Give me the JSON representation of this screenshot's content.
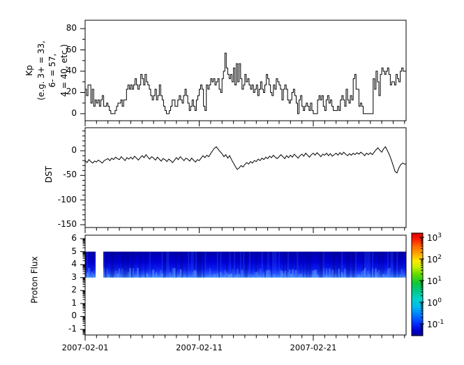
{
  "figure": {
    "background": "#ffffff",
    "frame_color": "#000000",
    "line_color": "#000000"
  },
  "xaxis": {
    "tick_labels": [
      "2007-02-01",
      "2007-02-11",
      "2007-02-21"
    ],
    "tick_days": [
      0,
      10,
      20
    ],
    "minor_every_days": 1,
    "total_days": 28.13
  },
  "panels": {
    "kp": {
      "label_lines": [
        "Kp",
        "(e.g. 3+ = 33,",
        "6- = 57,",
        "4 = 40, etc.)"
      ],
      "yticks": [
        0,
        20,
        40,
        60,
        80
      ],
      "yminor": [
        10,
        30,
        50,
        70
      ]
    },
    "dst": {
      "label": "DST",
      "yticks": [
        0,
        -50,
        -100,
        -150
      ]
    },
    "proton": {
      "label": "Proton Flux",
      "yticks": [
        6,
        5,
        4,
        3,
        2,
        1,
        0,
        -1
      ]
    }
  },
  "colorbar": {
    "tick_labels": [
      "10^3",
      "10^2",
      "10^1",
      "10^0",
      "10^-1"
    ],
    "tick_exponents": [
      3,
      2,
      1,
      0,
      -1
    ],
    "scale": "log",
    "gradient_stops": [
      [
        0,
        "#d80000"
      ],
      [
        6,
        "#ff1a00"
      ],
      [
        13,
        "#ff6a00"
      ],
      [
        20,
        "#ffa500"
      ],
      [
        27,
        "#ffe800"
      ],
      [
        33,
        "#c8f000"
      ],
      [
        40,
        "#64dc00"
      ],
      [
        48,
        "#14c832"
      ],
      [
        56,
        "#00c882"
      ],
      [
        64,
        "#00d2c8"
      ],
      [
        72,
        "#00baf0"
      ],
      [
        80,
        "#0078ff"
      ],
      [
        88,
        "#0032ff"
      ],
      [
        95,
        "#0000d2"
      ],
      [
        100,
        "#000096"
      ]
    ]
  },
  "chart_data": [
    {
      "type": "line",
      "subtype": "step",
      "ylabel": "Kp (e.g. 3+ = 33, 6- = 57, 4 = 40, etc.)",
      "x_start": "2007-02-01",
      "step_hours": 3,
      "ylim": [
        -6.6,
        87.9
      ],
      "yticks": [
        0,
        20,
        40,
        60,
        80
      ],
      "grid": false,
      "values": [
        23,
        17,
        27,
        27,
        10,
        23,
        7,
        13,
        10,
        13,
        7,
        13,
        17,
        7,
        7,
        10,
        7,
        3,
        0,
        0,
        0,
        3,
        7,
        10,
        10,
        13,
        7,
        13,
        13,
        23,
        27,
        23,
        27,
        23,
        27,
        33,
        27,
        23,
        27,
        37,
        33,
        27,
        37,
        30,
        27,
        23,
        17,
        13,
        17,
        23,
        13,
        17,
        27,
        17,
        13,
        7,
        3,
        0,
        0,
        3,
        7,
        13,
        13,
        7,
        7,
        13,
        17,
        13,
        10,
        17,
        23,
        17,
        10,
        3,
        7,
        13,
        7,
        3,
        13,
        17,
        23,
        27,
        23,
        7,
        3,
        27,
        23,
        27,
        33,
        30,
        33,
        27,
        30,
        33,
        23,
        20,
        33,
        40,
        57,
        43,
        37,
        33,
        37,
        30,
        43,
        27,
        47,
        30,
        47,
        33,
        23,
        27,
        37,
        30,
        33,
        27,
        23,
        27,
        20,
        23,
        27,
        17,
        23,
        30,
        23,
        20,
        27,
        37,
        33,
        27,
        20,
        17,
        27,
        23,
        33,
        30,
        27,
        23,
        13,
        23,
        27,
        23,
        13,
        10,
        13,
        20,
        23,
        17,
        10,
        0,
        13,
        17,
        7,
        3,
        7,
        10,
        7,
        3,
        10,
        3,
        0,
        0,
        0,
        13,
        17,
        13,
        17,
        7,
        3,
        13,
        17,
        10,
        13,
        7,
        3,
        3,
        3,
        7,
        3,
        13,
        17,
        13,
        7,
        23,
        13,
        10,
        17,
        13,
        33,
        37,
        23,
        23,
        7,
        10,
        7,
        0,
        0,
        0,
        0,
        0,
        0,
        0,
        33,
        23,
        40,
        30,
        17,
        37,
        43,
        40,
        37,
        40,
        43,
        37,
        27,
        30,
        30,
        27,
        37,
        33,
        30,
        40,
        43,
        40
      ]
    },
    {
      "type": "line",
      "ylabel": "DST",
      "x_start": "2007-02-01",
      "step_hours": 4,
      "ylim": [
        -155.7,
        46.7
      ],
      "yticks": [
        0,
        -50,
        -100,
        -150
      ],
      "grid": false,
      "values": [
        -20,
        -24,
        -18,
        -22,
        -25,
        -21,
        -23,
        -19,
        -22,
        -25,
        -20,
        -18,
        -16,
        -20,
        -15,
        -18,
        -13,
        -16,
        -18,
        -12,
        -16,
        -20,
        -14,
        -17,
        -13,
        -17,
        -11,
        -15,
        -19,
        -14,
        -10,
        -14,
        -8,
        -13,
        -17,
        -12,
        -15,
        -19,
        -13,
        -17,
        -21,
        -16,
        -18,
        -22,
        -17,
        -20,
        -24,
        -19,
        -14,
        -18,
        -12,
        -16,
        -20,
        -15,
        -17,
        -21,
        -15,
        -19,
        -23,
        -18,
        -20,
        -15,
        -10,
        -14,
        -9,
        -12,
        -6,
        0,
        5,
        8,
        3,
        -2,
        -6,
        -12,
        -8,
        -15,
        -10,
        -18,
        -25,
        -32,
        -38,
        -35,
        -30,
        -33,
        -28,
        -24,
        -27,
        -22,
        -25,
        -20,
        -22,
        -17,
        -20,
        -15,
        -18,
        -13,
        -16,
        -11,
        -14,
        -9,
        -13,
        -16,
        -12,
        -8,
        -12,
        -16,
        -10,
        -14,
        -9,
        -13,
        -7,
        -11,
        -15,
        -10,
        -7,
        -11,
        -5,
        -9,
        -13,
        -8,
        -5,
        -9,
        -4,
        -8,
        -12,
        -7,
        -9,
        -5,
        -10,
        -6,
        -11,
        -8,
        -5,
        -9,
        -4,
        -8,
        -3,
        -7,
        -10,
        -6,
        -9,
        -5,
        -8,
        -4,
        -7,
        -3,
        -6,
        -10,
        -5,
        -8,
        -4,
        -8,
        -3,
        2,
        6,
        1,
        -3,
        4,
        8,
        0,
        -8,
        -18,
        -30,
        -42,
        -45,
        -35,
        -28,
        -25,
        -27
      ]
    },
    {
      "type": "heatmap",
      "ylabel": "Proton Flux",
      "x_start": "2007-02-01",
      "ylim": [
        -1.43,
        6.27
      ],
      "yticks": [
        6,
        5,
        4,
        3,
        2,
        1,
        0,
        -1
      ],
      "band_y_range": [
        3,
        5
      ],
      "segments_days": [
        [
          0,
          0.92
        ],
        [
          1.59,
          28.13
        ]
      ],
      "colormap": "jet",
      "value_scale": "log",
      "colorbar_range_labels": [
        "10^3",
        "10^-1"
      ],
      "band_gradient_stops": [
        [
          0,
          "#0000aa"
        ],
        [
          40,
          "#0000d8"
        ],
        [
          68,
          "#0a1ef0"
        ],
        [
          86,
          "#2850ff"
        ],
        [
          100,
          "#4196ff"
        ]
      ],
      "streak_colors": {
        "dark": "#000070",
        "mid": "#3060ff",
        "bright_bottom": "#66a8ff"
      }
    }
  ]
}
